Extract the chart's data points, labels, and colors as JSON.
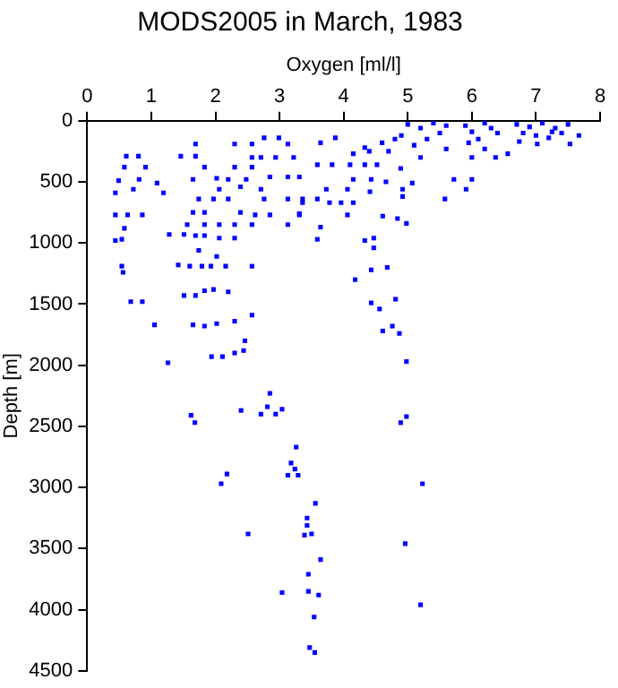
{
  "chart_data": {
    "type": "scatter",
    "title": "MODS2005 in March, 1983",
    "xlabel": "Oxygen [ml/l]",
    "ylabel": "Depth [m]",
    "xlim": [
      0,
      8
    ],
    "xticks": [
      0,
      1,
      2,
      3,
      4,
      5,
      6,
      7,
      8
    ],
    "ylim": [
      4500,
      0
    ],
    "yticks": [
      0,
      500,
      1000,
      1500,
      2000,
      2500,
      3000,
      3500,
      4000,
      4500
    ],
    "grid": false,
    "legend": false,
    "marker": "square",
    "series": [
      {
        "color": "#0000ff",
        "x": [
          1.26,
          1.94,
          2.11,
          2.3,
          2.44,
          2.46,
          1.62,
          1.68,
          2.4,
          2.85,
          2.81,
          2.71,
          2.94,
          3.04,
          3.26,
          3.18,
          3.24,
          3.13,
          3.29,
          2.18,
          2.09,
          3.56,
          3.43,
          3.43,
          3.5,
          3.39,
          2.51,
          3.64,
          3.45,
          3.04,
          3.45,
          3.61,
          3.54,
          3.47,
          3.55,
          4.98,
          4.98,
          4.89,
          5.23,
          4.96,
          5.2,
          4.87,
          4.61,
          4.76,
          4.56,
          4.43,
          4.81,
          4.18,
          4.68,
          4.43,
          4.47,
          4.33,
          4.47,
          3.59,
          4.98,
          4.84,
          4.61,
          4.06,
          4.92,
          4.92,
          4.41,
          4.15,
          3.96,
          3.78,
          3.59,
          3.36,
          3.31,
          3.64,
          3.73,
          4.06,
          4.43,
          4.15,
          4.66,
          5.07,
          3.31,
          3.59,
          3.82,
          4.1,
          4.33,
          4.52,
          4.89,
          4.15,
          4.33,
          3.87,
          3.64,
          7.67,
          7.53,
          6.0,
          5.91,
          5.72,
          5.58,
          6.37,
          6.56,
          6.74,
          7.02,
          7.25,
          0.61,
          0.8,
          0.58,
          0.91,
          0.49,
          0.81,
          1.09,
          0.44,
          0.72,
          1.19,
          0.44,
          0.63,
          0.86,
          0.44,
          0.54,
          0.58,
          0.54,
          0.56,
          0.68,
          0.86,
          1.05,
          1.69,
          1.46,
          1.69,
          1.83,
          1.65,
          2.02,
          2.3,
          2.2,
          2.48,
          2.06,
          2.39,
          2.3,
          2.57,
          1.74,
          1.97,
          1.83,
          1.65,
          2.2,
          2.39,
          2.62,
          2.85,
          1.56,
          1.83,
          2.06,
          2.3,
          2.57,
          1.28,
          1.51,
          1.69,
          1.83,
          2.06,
          2.3,
          1.74,
          2.02,
          1.42,
          1.6,
          1.79,
          1.93,
          2.16,
          2.57,
          1.51,
          1.69,
          1.83,
          1.97,
          2.2,
          2.57,
          1.65,
          1.83,
          2.02,
          2.3,
          2.76,
          2.99,
          3.13,
          2.85,
          3.13,
          2.71,
          2.76,
          3.13,
          3.36,
          2.71,
          2.94,
          3.22,
          2.57,
          2.57,
          3.13,
          3.31,
          5.0,
          5.2,
          5.4,
          5.5,
          5.3,
          5.1,
          4.9,
          4.7,
          5.6,
          5.2,
          5.6,
          5.9,
          6.0,
          6.2,
          6.3,
          6.1,
          5.95,
          6.4,
          6.2,
          6.0,
          6.7,
          6.9,
          7.1,
          7.3,
          7.5,
          7.0,
          7.2,
          6.8,
          7.4,
          4.8,
          4.6,
          4.4
        ],
        "values": [
          1980,
          1930,
          1930,
          1900,
          1880,
          1800,
          2410,
          2470,
          2370,
          2230,
          2340,
          2400,
          2400,
          2360,
          2670,
          2800,
          2850,
          2900,
          2900,
          2890,
          2970,
          3130,
          3250,
          3310,
          3380,
          3390,
          3380,
          3590,
          3710,
          3860,
          3850,
          3880,
          4060,
          4310,
          4350,
          1970,
          2420,
          2470,
          2970,
          3460,
          3960,
          1740,
          1720,
          1680,
          1540,
          1490,
          1460,
          1300,
          1200,
          1220,
          1040,
          980,
          960,
          970,
          840,
          800,
          780,
          770,
          620,
          560,
          580,
          670,
          670,
          670,
          640,
          670,
          760,
          870,
          560,
          560,
          480,
          480,
          500,
          510,
          460,
          360,
          360,
          360,
          360,
          360,
          390,
          270,
          220,
          140,
          180,
          120,
          190,
          480,
          560,
          480,
          640,
          300,
          270,
          170,
          190,
          90,
          290,
          290,
          380,
          380,
          490,
          480,
          510,
          590,
          560,
          590,
          770,
          770,
          770,
          980,
          970,
          880,
          1190,
          1240,
          1480,
          1480,
          1670,
          190,
          290,
          290,
          380,
          480,
          470,
          190,
          480,
          480,
          560,
          540,
          380,
          380,
          640,
          640,
          750,
          750,
          640,
          750,
          770,
          770,
          850,
          850,
          850,
          850,
          850,
          930,
          930,
          940,
          940,
          960,
          960,
          1060,
          1110,
          1180,
          1190,
          1190,
          1190,
          1190,
          1190,
          1430,
          1430,
          1390,
          1380,
          1400,
          1590,
          1670,
          1680,
          1660,
          1640,
          140,
          140,
          190,
          460,
          460,
          560,
          640,
          640,
          640,
          300,
          300,
          300,
          190,
          300,
          850,
          770,
          30,
          60,
          20,
          100,
          150,
          200,
          120,
          250,
          40,
          300,
          230,
          40,
          90,
          20,
          60,
          150,
          180,
          100,
          230,
          300,
          30,
          50,
          20,
          60,
          30,
          120,
          140,
          100,
          100,
          150,
          180,
          250
        ]
      }
    ]
  }
}
